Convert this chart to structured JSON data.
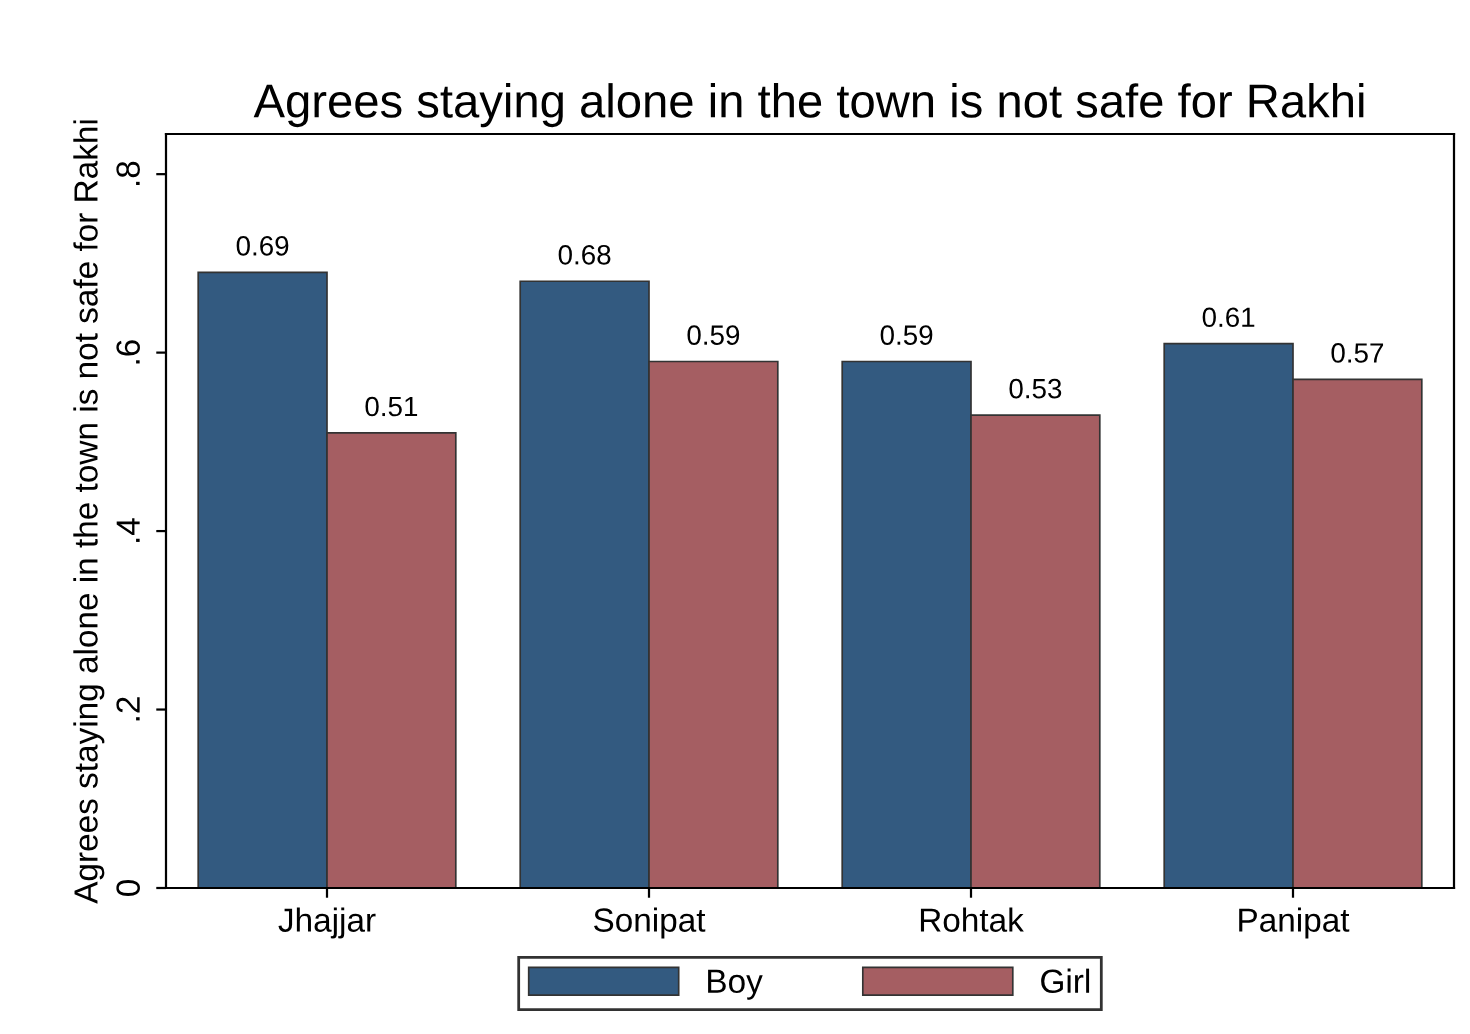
{
  "chart_data": {
    "type": "bar",
    "title": "Agrees staying alone in the town is not safe for Rakhi",
    "ylabel": "Agrees staying alone in the town is not safe for Rakhi",
    "categories": [
      "Jhajjar",
      "Sonipat",
      "Rohtak",
      "Panipat"
    ],
    "series": [
      {
        "name": "Boy",
        "color": "#335a80",
        "values": [
          0.69,
          0.68,
          0.59,
          0.61
        ]
      },
      {
        "name": "Girl",
        "color": "#a55e62",
        "values": [
          0.51,
          0.59,
          0.53,
          0.57
        ]
      }
    ],
    "ylim": [
      0,
      0.845
    ],
    "yticks": [
      0,
      {
        "value": 0.2,
        "label": ".2"
      },
      {
        "value": 0.4,
        "label": ".4"
      },
      {
        "value": 0.6,
        "label": ".6"
      },
      {
        "value": 0.8,
        "label": ".8"
      }
    ],
    "data_labels": true,
    "legend": "bottom",
    "grid": false
  }
}
